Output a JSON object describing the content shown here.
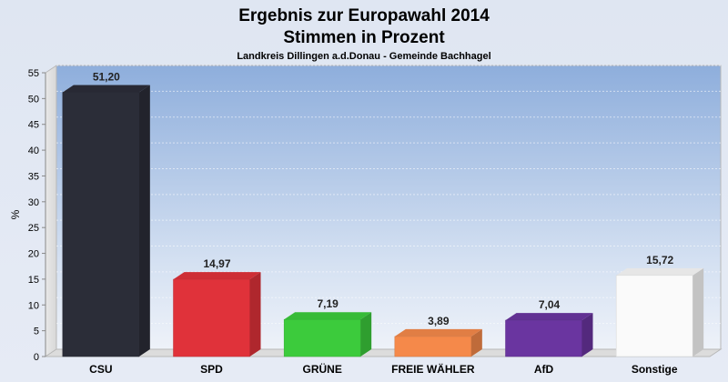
{
  "chart_data": {
    "type": "bar",
    "title": "Ergebnis zur Europawahl 2014",
    "subtitle": "Stimmen in Prozent",
    "caption": "Landkreis Dillingen a.d.Donau - Gemeinde Bachhagel",
    "ylabel": "%",
    "ylim": [
      0,
      55
    ],
    "yticks": [
      0,
      5,
      10,
      15,
      20,
      25,
      30,
      35,
      40,
      45,
      50,
      55
    ],
    "grid": true,
    "categories": [
      "CSU",
      "SPD",
      "GRÜNE",
      "FREIE WÄHLER",
      "AfD",
      "Sonstige"
    ],
    "values": [
      51.2,
      14.97,
      7.19,
      3.89,
      7.04,
      15.72
    ],
    "value_labels": [
      "51,20",
      "14,97",
      "7,19",
      "3,89",
      "7,04",
      "15,72"
    ],
    "colors": [
      "#2b2d38",
      "#e0323a",
      "#3ccb3c",
      "#f5894a",
      "#6a35a0",
      "#fafafa"
    ]
  }
}
